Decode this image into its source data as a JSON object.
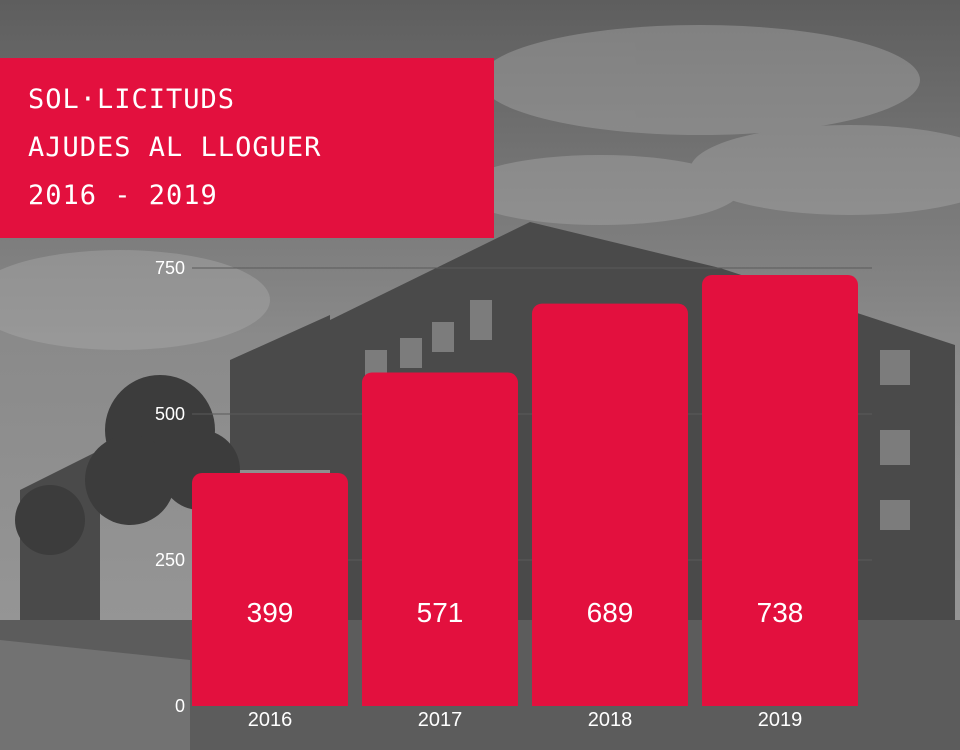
{
  "title": {
    "line1": "SOL·LICITUDS",
    "line2": "AJUDES AL LLOGUER",
    "line3": "2016 - 2019"
  },
  "colors": {
    "accent": "#e3103e",
    "text": "#ffffff",
    "grid": "#5a5a5a"
  },
  "chart_data": {
    "type": "bar",
    "categories": [
      "2016",
      "2017",
      "2018",
      "2019"
    ],
    "values": [
      399,
      571,
      689,
      738
    ],
    "title": "SOL·LICITUDS AJUDES AL LLOGUER 2016 - 2019",
    "xlabel": "",
    "ylabel": "",
    "ylim": [
      0,
      750
    ],
    "yticks": [
      0,
      250,
      500,
      750
    ],
    "grid": true,
    "data_labels": true
  }
}
